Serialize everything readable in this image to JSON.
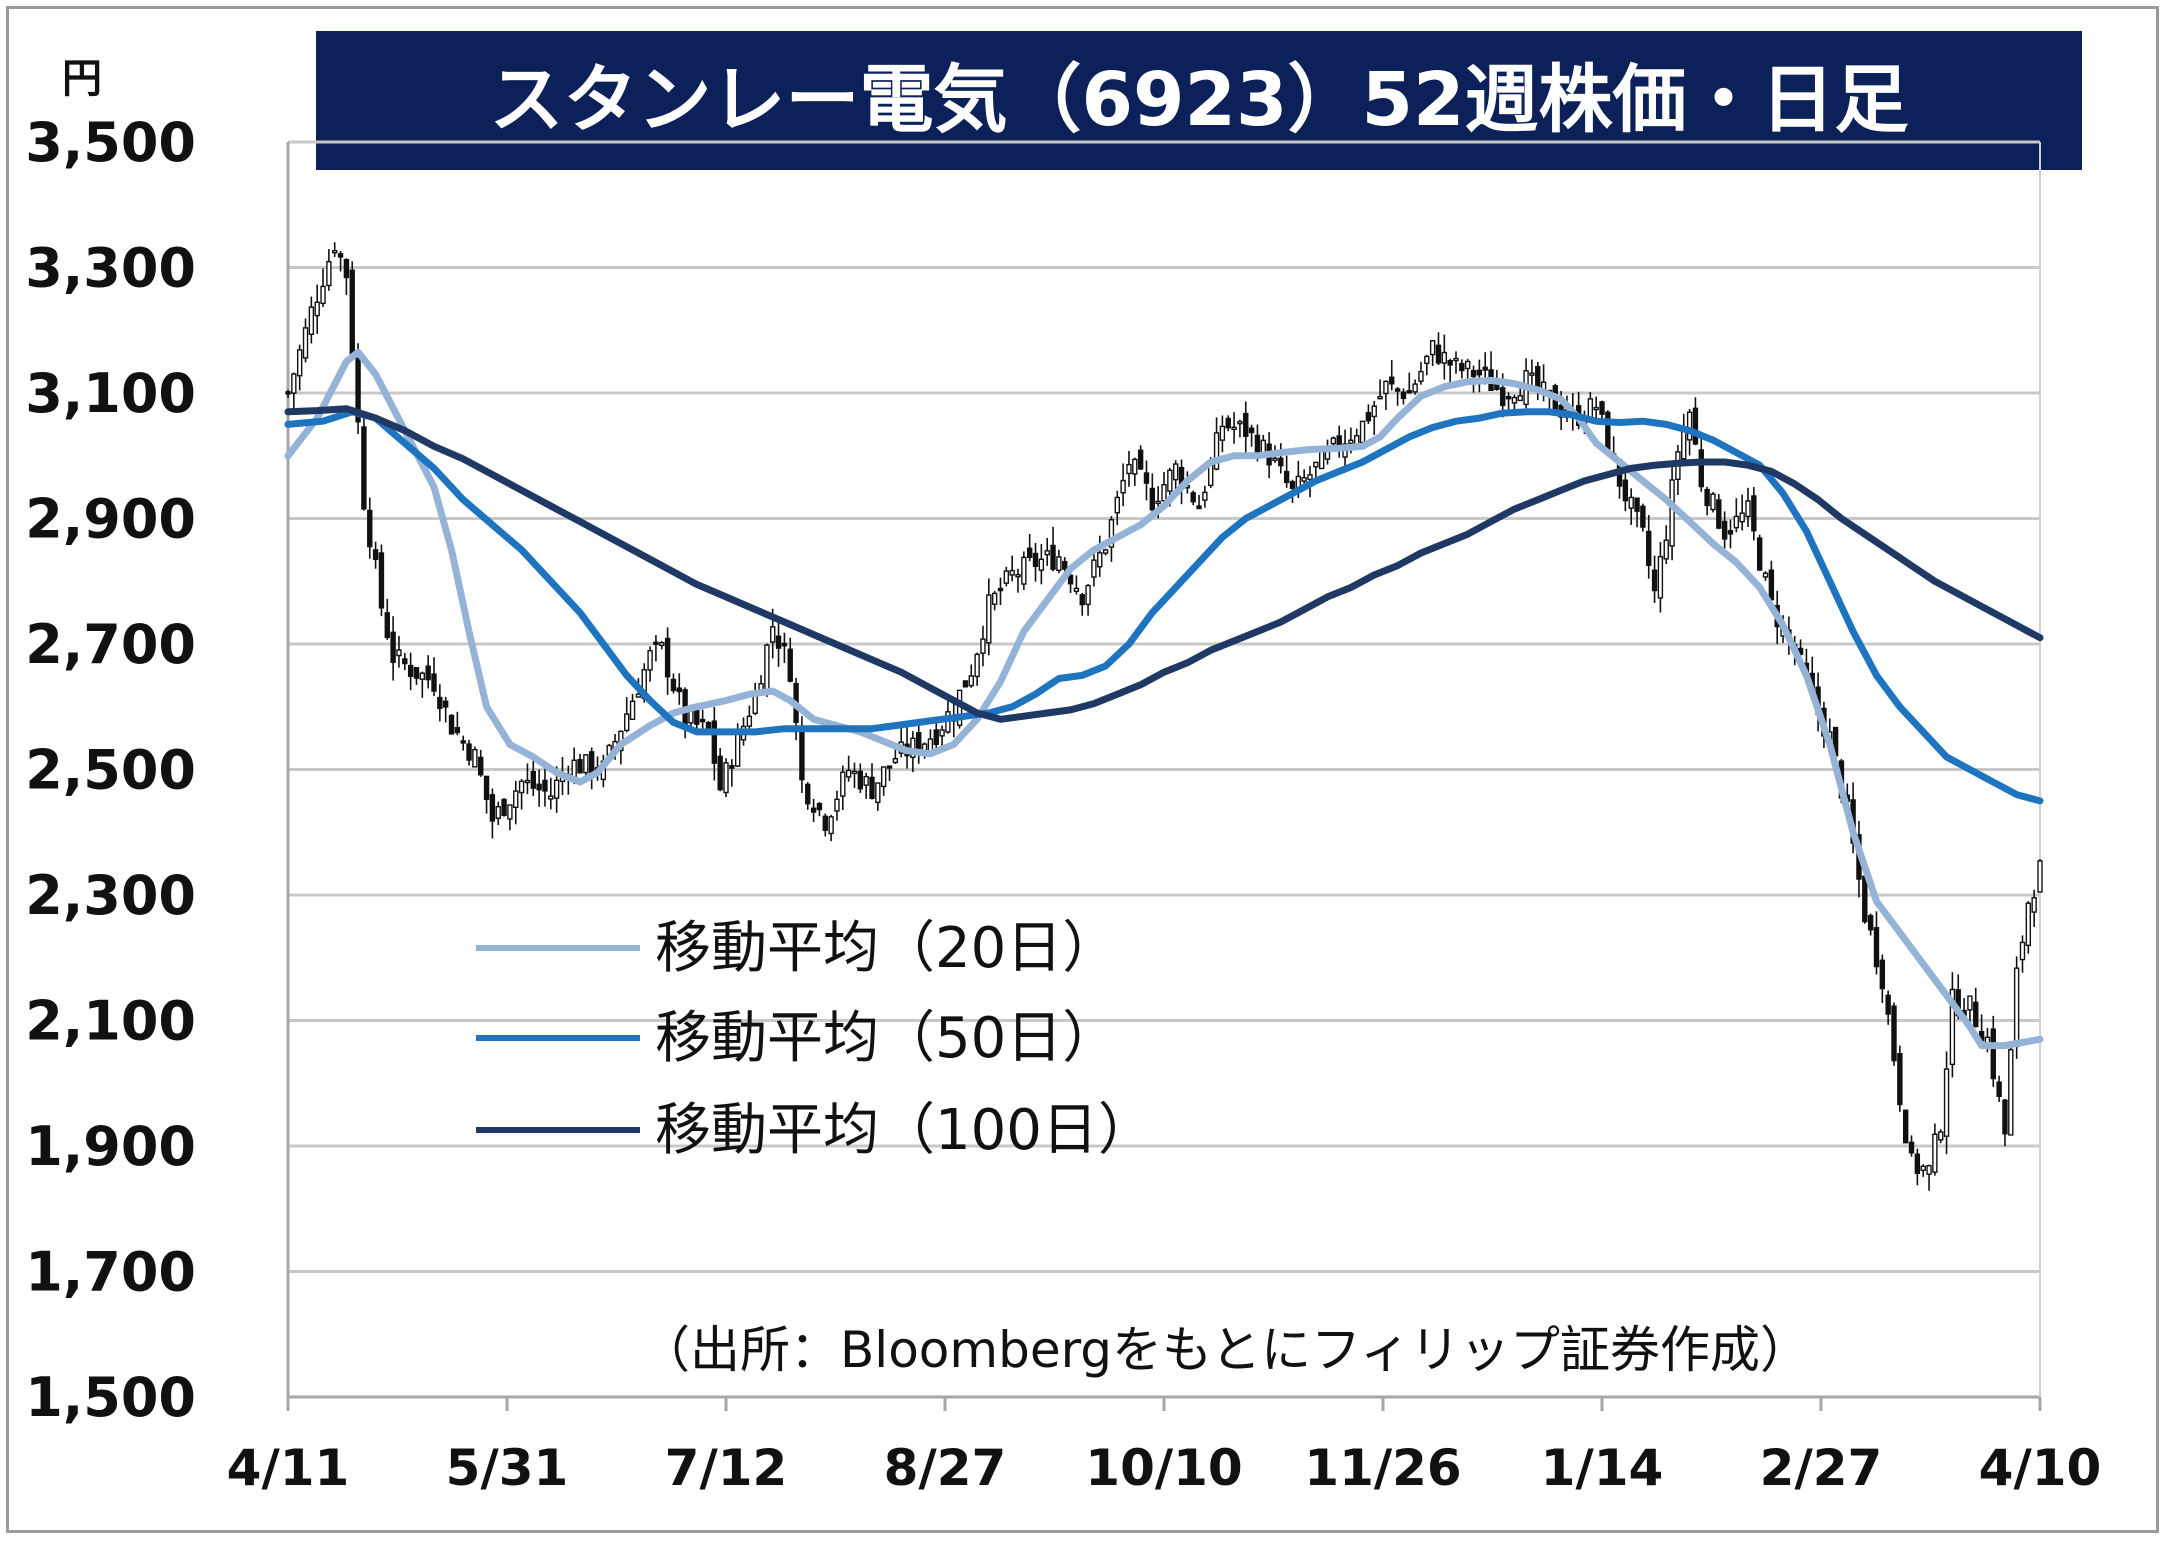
{
  "title": "スタンレー電気（6923）52週株価・日足",
  "source_note": "（出所：Bloombergをもとにフィリップ証券作成）",
  "chart_data": {
    "type": "candlestick",
    "title": "スタンレー電気（6923）52週株価・日足",
    "y_unit": "円",
    "ylim": [
      1500,
      3500
    ],
    "y_ticks": [
      1500,
      1700,
      1900,
      2100,
      2300,
      2500,
      2700,
      2900,
      3100,
      3300,
      3500
    ],
    "y_tick_labels": [
      "1,500",
      "1,700",
      "1,900",
      "2,100",
      "2,300",
      "2,500",
      "2,700",
      "2,900",
      "3,100",
      "3,300",
      "3,500"
    ],
    "x_tick_labels": [
      "4/11",
      "5/31",
      "7/12",
      "8/27",
      "10/10",
      "11/26",
      "1/14",
      "2/27",
      "4/10"
    ],
    "grid": true,
    "legend_position": "left-middle",
    "candle_close_anchors": [
      [
        0,
        3100
      ],
      [
        4,
        3230
      ],
      [
        8,
        3340
      ],
      [
        10,
        3290
      ],
      [
        13,
        2930
      ],
      [
        16,
        2760
      ],
      [
        18,
        2680
      ],
      [
        21,
        2660
      ],
      [
        25,
        2640
      ],
      [
        28,
        2570
      ],
      [
        32,
        2520
      ],
      [
        35,
        2420
      ],
      [
        40,
        2480
      ],
      [
        45,
        2460
      ],
      [
        48,
        2510
      ],
      [
        54,
        2500
      ],
      [
        58,
        2590
      ],
      [
        62,
        2680
      ],
      [
        64,
        2690
      ],
      [
        68,
        2580
      ],
      [
        72,
        2560
      ],
      [
        74,
        2470
      ],
      [
        80,
        2620
      ],
      [
        83,
        2730
      ],
      [
        86,
        2660
      ],
      [
        88,
        2480
      ],
      [
        92,
        2420
      ],
      [
        96,
        2500
      ],
      [
        100,
        2470
      ],
      [
        104,
        2520
      ],
      [
        108,
        2540
      ],
      [
        111,
        2560
      ],
      [
        114,
        2600
      ],
      [
        117,
        2660
      ],
      [
        120,
        2760
      ],
      [
        124,
        2810
      ],
      [
        128,
        2830
      ],
      [
        132,
        2840
      ],
      [
        136,
        2780
      ],
      [
        140,
        2860
      ],
      [
        144,
        2990
      ],
      [
        148,
        2930
      ],
      [
        152,
        2980
      ],
      [
        156,
        2920
      ],
      [
        160,
        3050
      ],
      [
        164,
        3040
      ],
      [
        168,
        3000
      ],
      [
        172,
        2940
      ],
      [
        176,
        2980
      ],
      [
        180,
        3020
      ],
      [
        184,
        3050
      ],
      [
        188,
        3110
      ],
      [
        192,
        3100
      ],
      [
        196,
        3170
      ],
      [
        200,
        3140
      ],
      [
        204,
        3130
      ],
      [
        208,
        3100
      ],
      [
        212,
        3120
      ],
      [
        216,
        3090
      ],
      [
        220,
        3060
      ],
      [
        224,
        3080
      ],
      [
        228,
        2960
      ],
      [
        232,
        2870
      ],
      [
        234,
        2780
      ],
      [
        236,
        2880
      ],
      [
        238,
        3010
      ],
      [
        240,
        3070
      ],
      [
        242,
        2960
      ],
      [
        246,
        2880
      ],
      [
        250,
        2910
      ],
      [
        254,
        2760
      ],
      [
        258,
        2690
      ],
      [
        262,
        2590
      ],
      [
        264,
        2550
      ],
      [
        267,
        2430
      ],
      [
        270,
        2270
      ],
      [
        273,
        2170
      ],
      [
        276,
        1980
      ],
      [
        278,
        1870
      ],
      [
        281,
        1860
      ],
      [
        283,
        1940
      ],
      [
        285,
        2130
      ],
      [
        288,
        2120
      ],
      [
        291,
        2070
      ],
      [
        294,
        1920
      ],
      [
        296,
        2170
      ],
      [
        298,
        2290
      ],
      [
        300,
        2340
      ]
    ],
    "series": [
      {
        "name": "移動平均（20日）",
        "color": "#95b3d7",
        "points": [
          [
            0,
            3000
          ],
          [
            5,
            3060
          ],
          [
            10,
            3150
          ],
          [
            12,
            3165
          ],
          [
            15,
            3130
          ],
          [
            20,
            3040
          ],
          [
            25,
            2950
          ],
          [
            28,
            2850
          ],
          [
            31,
            2720
          ],
          [
            34,
            2600
          ],
          [
            38,
            2540
          ],
          [
            42,
            2520
          ],
          [
            46,
            2495
          ],
          [
            50,
            2480
          ],
          [
            53,
            2495
          ],
          [
            57,
            2540
          ],
          [
            62,
            2570
          ],
          [
            66,
            2590
          ],
          [
            70,
            2600
          ],
          [
            75,
            2610
          ],
          [
            79,
            2620
          ],
          [
            83,
            2625
          ],
          [
            86,
            2610
          ],
          [
            90,
            2580
          ],
          [
            94,
            2570
          ],
          [
            98,
            2560
          ],
          [
            102,
            2545
          ],
          [
            106,
            2530
          ],
          [
            110,
            2525
          ],
          [
            114,
            2540
          ],
          [
            118,
            2580
          ],
          [
            122,
            2640
          ],
          [
            126,
            2720
          ],
          [
            130,
            2770
          ],
          [
            134,
            2820
          ],
          [
            138,
            2850
          ],
          [
            142,
            2870
          ],
          [
            146,
            2890
          ],
          [
            150,
            2920
          ],
          [
            154,
            2960
          ],
          [
            158,
            2990
          ],
          [
            162,
            3000
          ],
          [
            166,
            3000
          ],
          [
            170,
            3005
          ],
          [
            175,
            3010
          ],
          [
            180,
            3012
          ],
          [
            184,
            3015
          ],
          [
            187,
            3030
          ],
          [
            190,
            3060
          ],
          [
            194,
            3095
          ],
          [
            198,
            3110
          ],
          [
            202,
            3118
          ],
          [
            206,
            3120
          ],
          [
            210,
            3115
          ],
          [
            214,
            3105
          ],
          [
            218,
            3090
          ],
          [
            221,
            3060
          ],
          [
            224,
            3020
          ],
          [
            228,
            2990
          ],
          [
            232,
            2960
          ],
          [
            236,
            2930
          ],
          [
            240,
            2895
          ],
          [
            244,
            2860
          ],
          [
            248,
            2830
          ],
          [
            252,
            2790
          ],
          [
            256,
            2730
          ],
          [
            260,
            2650
          ],
          [
            264,
            2540
          ],
          [
            268,
            2400
          ],
          [
            272,
            2290
          ],
          [
            276,
            2240
          ],
          [
            280,
            2190
          ],
          [
            284,
            2140
          ],
          [
            288,
            2090
          ],
          [
            290,
            2060
          ],
          [
            294,
            2060
          ],
          [
            300,
            2070
          ]
        ]
      },
      {
        "name": "移動平均（50日）",
        "color": "#1f74c0",
        "points": [
          [
            0,
            3050
          ],
          [
            6,
            3055
          ],
          [
            11,
            3070
          ],
          [
            15,
            3060
          ],
          [
            20,
            3020
          ],
          [
            25,
            2980
          ],
          [
            30,
            2930
          ],
          [
            35,
            2890
          ],
          [
            40,
            2850
          ],
          [
            45,
            2800
          ],
          [
            50,
            2750
          ],
          [
            54,
            2700
          ],
          [
            58,
            2650
          ],
          [
            62,
            2610
          ],
          [
            66,
            2575
          ],
          [
            70,
            2560
          ],
          [
            75,
            2560
          ],
          [
            80,
            2560
          ],
          [
            85,
            2565
          ],
          [
            90,
            2565
          ],
          [
            95,
            2565
          ],
          [
            100,
            2565
          ],
          [
            104,
            2570
          ],
          [
            108,
            2575
          ],
          [
            112,
            2580
          ],
          [
            116,
            2585
          ],
          [
            120,
            2590
          ],
          [
            124,
            2600
          ],
          [
            128,
            2620
          ],
          [
            132,
            2645
          ],
          [
            136,
            2650
          ],
          [
            140,
            2665
          ],
          [
            144,
            2700
          ],
          [
            148,
            2750
          ],
          [
            152,
            2790
          ],
          [
            156,
            2830
          ],
          [
            160,
            2870
          ],
          [
            164,
            2900
          ],
          [
            168,
            2920
          ],
          [
            172,
            2940
          ],
          [
            176,
            2960
          ],
          [
            180,
            2975
          ],
          [
            184,
            2990
          ],
          [
            188,
            3010
          ],
          [
            192,
            3030
          ],
          [
            196,
            3045
          ],
          [
            200,
            3055
          ],
          [
            204,
            3060
          ],
          [
            208,
            3068
          ],
          [
            212,
            3070
          ],
          [
            216,
            3070
          ],
          [
            220,
            3065
          ],
          [
            224,
            3055
          ],
          [
            228,
            3053
          ],
          [
            232,
            3055
          ],
          [
            236,
            3050
          ],
          [
            240,
            3040
          ],
          [
            244,
            3025
          ],
          [
            248,
            3005
          ],
          [
            252,
            2985
          ],
          [
            256,
            2940
          ],
          [
            260,
            2880
          ],
          [
            264,
            2800
          ],
          [
            268,
            2720
          ],
          [
            272,
            2650
          ],
          [
            276,
            2600
          ],
          [
            280,
            2560
          ],
          [
            284,
            2520
          ],
          [
            290,
            2490
          ],
          [
            296,
            2460
          ],
          [
            300,
            2450
          ]
        ]
      },
      {
        "name": "移動平均（100日）",
        "color": "#1f3864",
        "points": [
          [
            0,
            3070
          ],
          [
            5,
            3072
          ],
          [
            10,
            3075
          ],
          [
            15,
            3060
          ],
          [
            20,
            3040
          ],
          [
            25,
            3015
          ],
          [
            30,
            2995
          ],
          [
            35,
            2970
          ],
          [
            40,
            2945
          ],
          [
            45,
            2920
          ],
          [
            50,
            2895
          ],
          [
            55,
            2870
          ],
          [
            60,
            2845
          ],
          [
            65,
            2820
          ],
          [
            70,
            2795
          ],
          [
            75,
            2775
          ],
          [
            80,
            2755
          ],
          [
            85,
            2735
          ],
          [
            90,
            2715
          ],
          [
            95,
            2695
          ],
          [
            100,
            2675
          ],
          [
            105,
            2655
          ],
          [
            110,
            2630
          ],
          [
            115,
            2605
          ],
          [
            118,
            2590
          ],
          [
            122,
            2580
          ],
          [
            126,
            2585
          ],
          [
            130,
            2590
          ],
          [
            134,
            2595
          ],
          [
            138,
            2605
          ],
          [
            142,
            2620
          ],
          [
            146,
            2635
          ],
          [
            150,
            2655
          ],
          [
            154,
            2670
          ],
          [
            158,
            2690
          ],
          [
            162,
            2705
          ],
          [
            166,
            2720
          ],
          [
            170,
            2735
          ],
          [
            174,
            2755
          ],
          [
            178,
            2775
          ],
          [
            182,
            2790
          ],
          [
            186,
            2810
          ],
          [
            190,
            2825
          ],
          [
            194,
            2845
          ],
          [
            198,
            2860
          ],
          [
            202,
            2875
          ],
          [
            206,
            2895
          ],
          [
            210,
            2915
          ],
          [
            214,
            2930
          ],
          [
            218,
            2945
          ],
          [
            222,
            2960
          ],
          [
            226,
            2970
          ],
          [
            230,
            2980
          ],
          [
            234,
            2985
          ],
          [
            238,
            2988
          ],
          [
            242,
            2990
          ],
          [
            246,
            2990
          ],
          [
            250,
            2985
          ],
          [
            254,
            2975
          ],
          [
            258,
            2955
          ],
          [
            262,
            2930
          ],
          [
            266,
            2900
          ],
          [
            270,
            2875
          ],
          [
            274,
            2850
          ],
          [
            278,
            2825
          ],
          [
            282,
            2800
          ],
          [
            286,
            2780
          ],
          [
            290,
            2760
          ],
          [
            294,
            2740
          ],
          [
            298,
            2720
          ],
          [
            300,
            2710
          ]
        ]
      }
    ]
  }
}
